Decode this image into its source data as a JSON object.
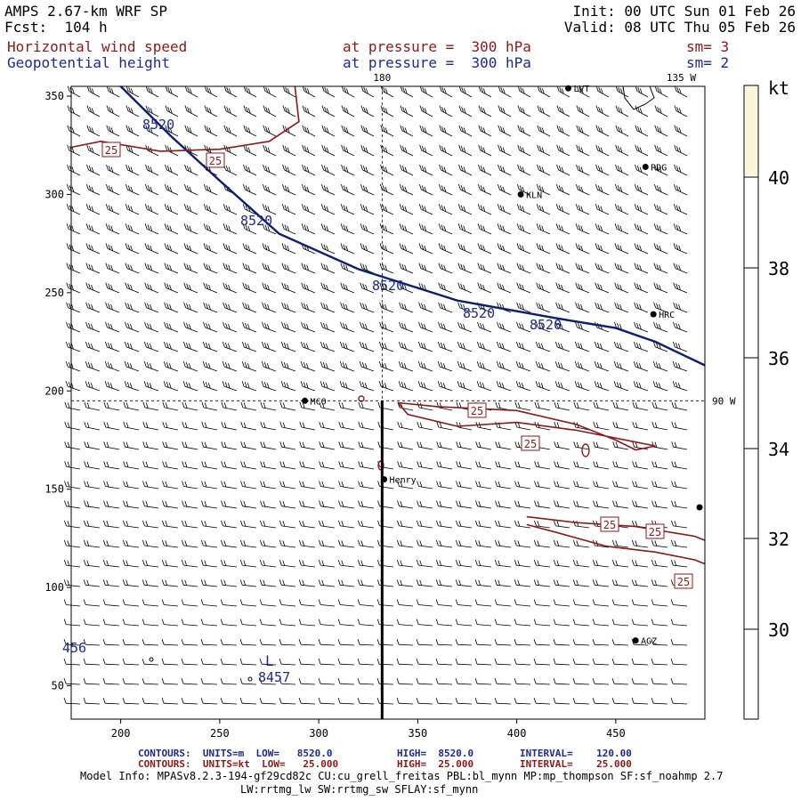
{
  "header": {
    "model": "AMPS 2.67-km WRF SP",
    "fcst": "Fcst:  104 h",
    "init": "Init: 00 UTC Sun 01 Feb 26",
    "valid": "Valid: 08 UTC Thu 05 Feb 26",
    "field1": "Horizontal wind speed",
    "field1_level": "at pressure =  300 hPa",
    "field1_sm": "sm= 3",
    "field2": "Geopotential height",
    "field2_level": "at pressure =  300 hPa",
    "field2_sm": "sm= 2",
    "colors": {
      "black": "#000000",
      "red": "#8b1a1a",
      "blue": "#1f2a8a",
      "navy": "#0d1f6e"
    }
  },
  "map_labels": {
    "top_center": "180",
    "top_right": "135 W",
    "right_mid": "90 W",
    "stations": [
      "LVT",
      "RDG",
      "KLN",
      "HRC",
      "MCO",
      "Henry",
      "AGZ"
    ]
  },
  "colorbar": {
    "unit": "kt",
    "ticks": [
      "40",
      "38",
      "36",
      "34",
      "32",
      "30"
    ],
    "top_fill": "#fbf5dc"
  },
  "chart_data": {
    "type": "contour",
    "title": "Horizontal wind speed / Geopotential height at 300 hPa",
    "xlim": [
      175,
      495
    ],
    "ylim": [
      33,
      355
    ],
    "xticks": [
      "200",
      "250",
      "300",
      "350",
      "400",
      "450"
    ],
    "yticks": [
      "350",
      "300",
      "250",
      "200",
      "150",
      "100",
      "50"
    ],
    "height_contours": [
      {
        "label": "8520",
        "points": [
          [
            200,
            355
          ],
          [
            225,
            330
          ],
          [
            250,
            307
          ],
          [
            280,
            280
          ],
          [
            320,
            262
          ],
          [
            370,
            246
          ],
          [
            420,
            237
          ],
          [
            450,
            232
          ],
          [
            470,
            225
          ],
          [
            495,
            213
          ]
        ]
      }
    ],
    "height_labels": [
      "8520",
      "8520",
      "8520",
      "8520",
      "8520",
      "8457",
      "456"
    ],
    "low_marker": "L",
    "wind_contours": [
      {
        "label": "25",
        "points": [
          [
            175,
            324
          ],
          [
            190,
            327
          ],
          [
            220,
            322
          ],
          [
            250,
            323
          ],
          [
            275,
            327
          ],
          [
            290,
            337
          ],
          [
            288,
            355
          ]
        ]
      },
      {
        "label": "25",
        "points": [
          [
            340,
            194
          ],
          [
            360,
            192
          ],
          [
            400,
            190
          ],
          [
            430,
            183
          ],
          [
            450,
            175
          ],
          [
            460,
            170
          ],
          [
            470,
            172
          ],
          [
            460,
            174
          ],
          [
            430,
            180
          ],
          [
            400,
            184
          ],
          [
            370,
            182
          ],
          [
            345,
            188
          ],
          [
            340,
            194
          ]
        ]
      },
      {
        "label": "25",
        "points": [
          [
            405,
            136
          ],
          [
            430,
            133
          ],
          [
            460,
            131
          ],
          [
            490,
            126
          ],
          [
            495,
            124
          ]
        ]
      },
      {
        "label": "25",
        "points": [
          [
            405,
            132
          ],
          [
            420,
            128
          ],
          [
            445,
            121
          ],
          [
            470,
            118
          ],
          [
            490,
            114
          ],
          [
            495,
            112
          ]
        ]
      }
    ],
    "wind_labels": [
      "25",
      "25",
      "25",
      "25",
      "25",
      "25"
    ],
    "stations": [
      {
        "name": "LVT",
        "x": 426,
        "y": 354
      },
      {
        "name": "RDG",
        "x": 465,
        "y": 314
      },
      {
        "name": "KLN",
        "x": 402,
        "y": 300
      },
      {
        "name": "HRC",
        "x": 469,
        "y": 239
      },
      {
        "name": "MCO",
        "x": 293,
        "y": 195
      },
      {
        "name": "Henry",
        "x": 333,
        "y": 155
      },
      {
        "name": "AGZ",
        "x": 460,
        "y": 73
      }
    ],
    "meridian_x": 332,
    "parallel_y": 195
  },
  "footer": {
    "row1": [
      {
        "text": "CONTOURS:  UNITS=m  LOW=   8520.0",
        "color": "#1f2a8a"
      },
      {
        "text": "HIGH=  8520.0",
        "color": "#1f2a8a"
      },
      {
        "text": "INTERVAL=    120.00",
        "color": "#1f2a8a"
      }
    ],
    "row2": [
      {
        "text": "CONTOURS:  UNITS=kt  LOW=   25.000",
        "color": "#8b1a1a"
      },
      {
        "text": "HIGH=  25.000",
        "color": "#8b1a1a"
      },
      {
        "text": "INTERVAL=    25.000",
        "color": "#8b1a1a"
      }
    ],
    "model_info": "Model Info: MPASv8.2.3-194-gf29cd82c CU:cu_grell_freitas PBL:bl_mynn MP:mp_thompson SF:sf_noahmp 2.7",
    "model_info2": "LW:rrtmg_lw SW:rrtmg_sw SFLAY:sf_mynn"
  }
}
